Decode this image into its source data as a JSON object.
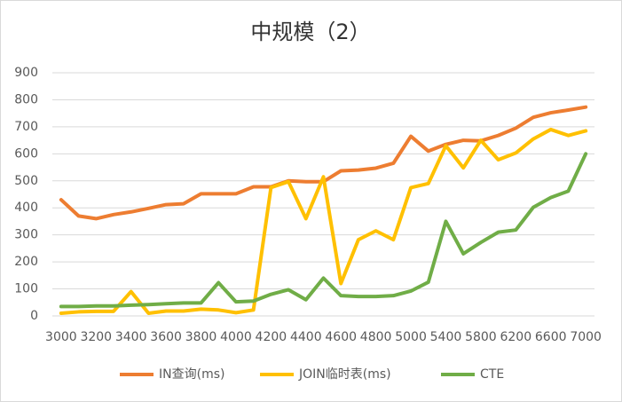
{
  "chart_data": {
    "type": "line",
    "title": "中规模（2）",
    "categories": [
      "3000",
      null,
      "3200",
      null,
      "3400",
      null,
      "3600",
      null,
      "3800",
      null,
      "4000",
      null,
      "4200",
      null,
      "4400",
      null,
      "4600",
      null,
      "4800",
      null,
      "5000",
      null,
      "5400",
      null,
      "5800",
      null,
      "6200",
      null,
      "6600",
      null,
      "7000"
    ],
    "series": [
      {
        "name": "IN查询(ms)",
        "color": "#ed7d31",
        "values": [
          430,
          370,
          360,
          375,
          385,
          398,
          412,
          415,
          452,
          452,
          452,
          478,
          478,
          500,
          497,
          497,
          537,
          540,
          547,
          565,
          665,
          610,
          635,
          650,
          648,
          668,
          695,
          735,
          752,
          762,
          773
        ]
      },
      {
        "name": "JOIN临时表(ms)",
        "color": "#ffc000",
        "values": [
          10,
          15,
          17,
          17,
          90,
          10,
          18,
          18,
          25,
          22,
          12,
          22,
          475,
          497,
          360,
          515,
          120,
          282,
          315,
          282,
          475,
          490,
          630,
          548,
          650,
          578,
          603,
          655,
          690,
          668,
          685
        ]
      },
      {
        "name": "CTE",
        "color": "#70ad47",
        "values": [
          35,
          35,
          37,
          37,
          40,
          42,
          45,
          48,
          48,
          123,
          52,
          55,
          80,
          97,
          60,
          140,
          75,
          72,
          72,
          75,
          92,
          125,
          350,
          230,
          272,
          310,
          318,
          402,
          438,
          462,
          600
        ]
      }
    ],
    "ylim": [
      0,
      900
    ],
    "yticks": [
      0,
      100,
      200,
      300,
      400,
      500,
      600,
      700,
      800,
      900
    ],
    "grid": true,
    "legend": "bottom"
  }
}
